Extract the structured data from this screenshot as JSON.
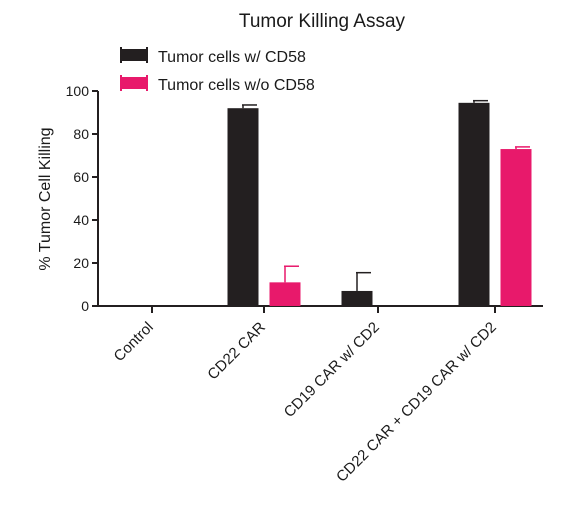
{
  "chart_data": {
    "type": "bar",
    "title": "Tumor Killing Assay",
    "xlabel": "",
    "ylabel": "% Tumor Cell Killing",
    "ylim": [
      0,
      100
    ],
    "yticks": [
      0,
      20,
      40,
      60,
      80,
      100
    ],
    "categories": [
      "Control",
      "CD22 CAR",
      "CD19 CAR w/ CD2",
      "CD22 CAR + CD19 CAR w/ CD2"
    ],
    "series": [
      {
        "name": "Tumor cells w/ CD58",
        "color": "#231f20",
        "values": [
          0,
          92,
          7,
          94.5
        ],
        "errors": [
          0,
          1.5,
          8.5,
          1
        ]
      },
      {
        "name": "Tumor cells w/o CD58",
        "color": "#e8196b",
        "values": [
          0,
          11,
          0,
          73
        ],
        "errors": [
          0,
          7.5,
          0,
          1
        ]
      }
    ],
    "grid": false,
    "legend_position": "top-left"
  }
}
